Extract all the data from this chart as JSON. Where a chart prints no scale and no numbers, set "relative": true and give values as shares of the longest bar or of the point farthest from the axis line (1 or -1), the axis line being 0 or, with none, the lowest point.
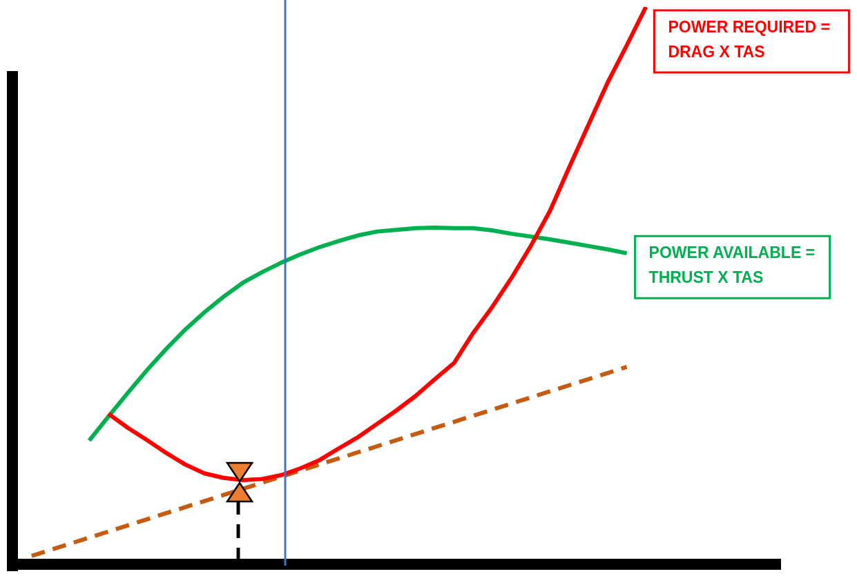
{
  "chart_data": {
    "type": "line",
    "relative": true,
    "tick_labels": false,
    "legend": false,
    "marker": "none",
    "categories": [
      null,
      null,
      null,
      null,
      null,
      null,
      null,
      null,
      null,
      null,
      null,
      null,
      null,
      null,
      null,
      null,
      null,
      null,
      null,
      null,
      null,
      null,
      null,
      null,
      null,
      null,
      null,
      null,
      null,
      null,
      null,
      null,
      null,
      null,
      null,
      null,
      null,
      null,
      null,
      null,
      null
    ],
    "series": [
      {
        "name": "POWER REQUIRED = DRAG X TAS",
        "color": "#ff0000",
        "line_style": "solid",
        "values": [
          null,
          null,
          null,
          null,
          null,
          0.27,
          0.245,
          0.223,
          0.2,
          0.179,
          0.163,
          0.155,
          0.151,
          0.153,
          0.16,
          0.172,
          0.187,
          0.208,
          0.228,
          0.252,
          0.276,
          0.302,
          0.332,
          0.361,
          0.415,
          0.462,
          0.514,
          0.571,
          0.634,
          0.712,
          0.788,
          0.864,
          0.931,
          1,
          null,
          null,
          null,
          null,
          null,
          null,
          null
        ]
      },
      {
        "name": "POWER AVAILABLE = THRUST X TAS",
        "color": "#00b050",
        "line_style": "solid",
        "values": [
          null,
          null,
          null,
          null,
          0.222,
          0.265,
          0.307,
          0.348,
          0.386,
          0.421,
          0.452,
          0.48,
          0.505,
          0.524,
          0.541,
          0.556,
          0.569,
          0.58,
          0.59,
          0.597,
          0.6,
          0.603,
          0.604,
          0.603,
          0.603,
          0.599,
          0.593,
          0.588,
          0.583,
          0.577,
          0.571,
          0.565,
          0.558,
          null,
          null,
          null,
          null,
          null,
          null,
          null,
          null
        ]
      },
      {
        "color": "#c55a11",
        "line_style": "dashed",
        "values": [
          null,
          0.015,
          null,
          null,
          null,
          null,
          null,
          null,
          null,
          null,
          null,
          null,
          null,
          null,
          null,
          null,
          null,
          null,
          null,
          null,
          null,
          null,
          null,
          null,
          null,
          null,
          null,
          null,
          null,
          null,
          null,
          null,
          0.354,
          null,
          null,
          null,
          null,
          null,
          null,
          null,
          null
        ]
      }
    ]
  }
}
